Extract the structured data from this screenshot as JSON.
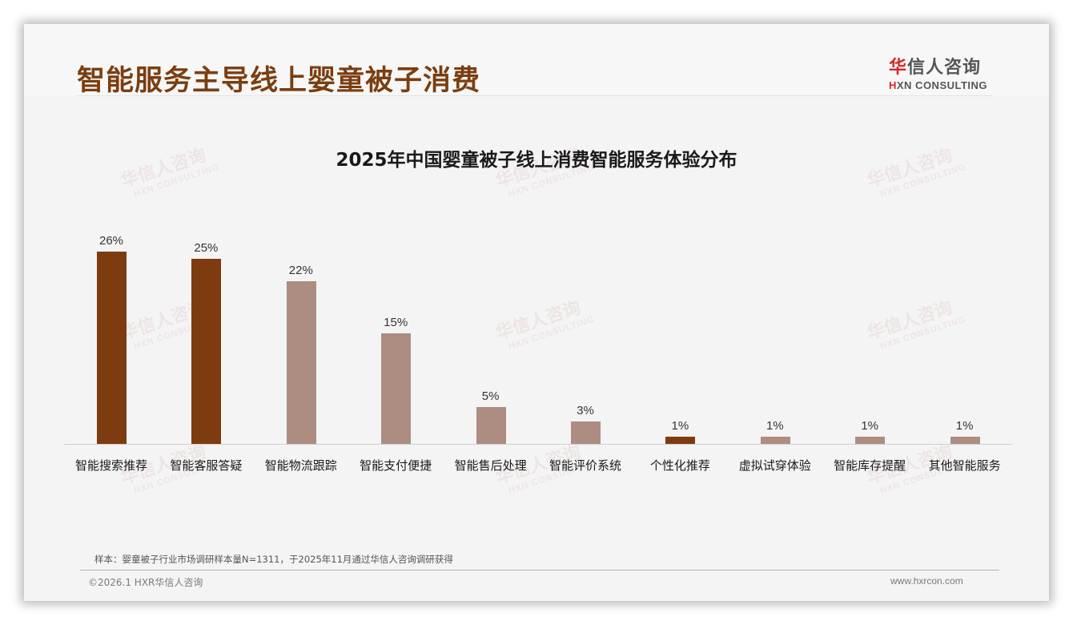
{
  "header": {
    "title": "智能服务主导线上婴童被子消费",
    "logo_cn_first": "华",
    "logo_cn_rest": "信人咨询",
    "logo_en_first": "H",
    "logo_en_rest": "XN CONSULTING"
  },
  "watermark": {
    "cn": "华信人咨询",
    "en": "HXN CONSULTING"
  },
  "colors": {
    "title": "#7b3e10",
    "highlight_bar": "#7f3b10",
    "normal_bar": "#ad8d82",
    "logo_red": "#d8262c"
  },
  "chart_data": {
    "type": "bar",
    "title": "2025年中国婴童被子线上消费智能服务体验分布",
    "xlabel": "",
    "ylabel": "",
    "ylim": [
      0,
      30
    ],
    "grid": false,
    "legend": null,
    "categories": [
      "智能搜索推荐",
      "智能客服答疑",
      "智能物流跟踪",
      "智能支付便捷",
      "智能售后处理",
      "智能评价系统",
      "个性化推荐",
      "虚拟试穿体验",
      "智能库存提醒",
      "其他智能服务"
    ],
    "values": [
      26,
      25,
      22,
      15,
      5,
      3,
      1,
      1,
      1,
      1
    ],
    "value_labels": [
      "26%",
      "25%",
      "22%",
      "15%",
      "5%",
      "3%",
      "1%",
      "1%",
      "1%",
      "1%"
    ],
    "highlighted": [
      true,
      true,
      false,
      false,
      false,
      false,
      true,
      false,
      false,
      false
    ]
  },
  "footer": {
    "note": "样本：婴童被子行业市场调研样本量N=1311，于2025年11月通过华信人咨询调研获得",
    "copyright": "©2026.1 HXR华信人咨询",
    "website": "www.hxrcon.com"
  }
}
